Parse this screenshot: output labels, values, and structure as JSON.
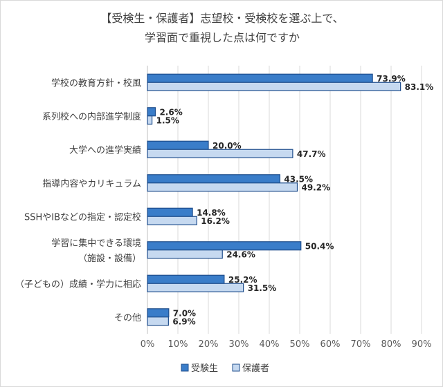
{
  "chart_data": {
    "type": "bar",
    "orientation": "horizontal",
    "title_lines": [
      "【受検生・保護者】志望校・受検校を選ぶ上で、",
      "学習面で重視した点は何ですか"
    ],
    "categories": [
      [
        "学校の教育方針・校風"
      ],
      [
        "系列校への内部進学制度"
      ],
      [
        "大学への進学実績"
      ],
      [
        "指導内容やカリキュラム"
      ],
      [
        "SSHやIBなどの指定・認定校"
      ],
      [
        "学習に集中できる環境",
        "（施設・設備）"
      ],
      [
        "（子どもの）成績・学力に相応"
      ],
      [
        "その他"
      ]
    ],
    "series": [
      {
        "name": "受験生",
        "values": [
          73.9,
          2.6,
          20.0,
          43.5,
          14.8,
          50.4,
          25.2,
          7.0
        ],
        "labels": [
          "73.9%",
          "2.6%",
          "20.0%",
          "43.5%",
          "14.8%",
          "50.4%",
          "25.2%",
          "7.0%"
        ],
        "color": "#3a7dc9",
        "stroke": "#1f4e8c"
      },
      {
        "name": "保護者",
        "values": [
          83.1,
          1.5,
          47.7,
          49.2,
          16.2,
          24.6,
          31.5,
          6.9
        ],
        "labels": [
          "83.1%",
          "1.5%",
          "47.7%",
          "49.2%",
          "16.2%",
          "24.6%",
          "31.5%",
          "6.9%"
        ],
        "color": "#c6d9f0",
        "stroke": "#1f4e8c"
      }
    ],
    "x_ticks": [
      "0%",
      "10%",
      "20%",
      "30%",
      "40%",
      "50%",
      "60%",
      "70%",
      "80%",
      "90%"
    ],
    "xlim": [
      0,
      90
    ],
    "grid": true,
    "legend_position": "bottom"
  }
}
